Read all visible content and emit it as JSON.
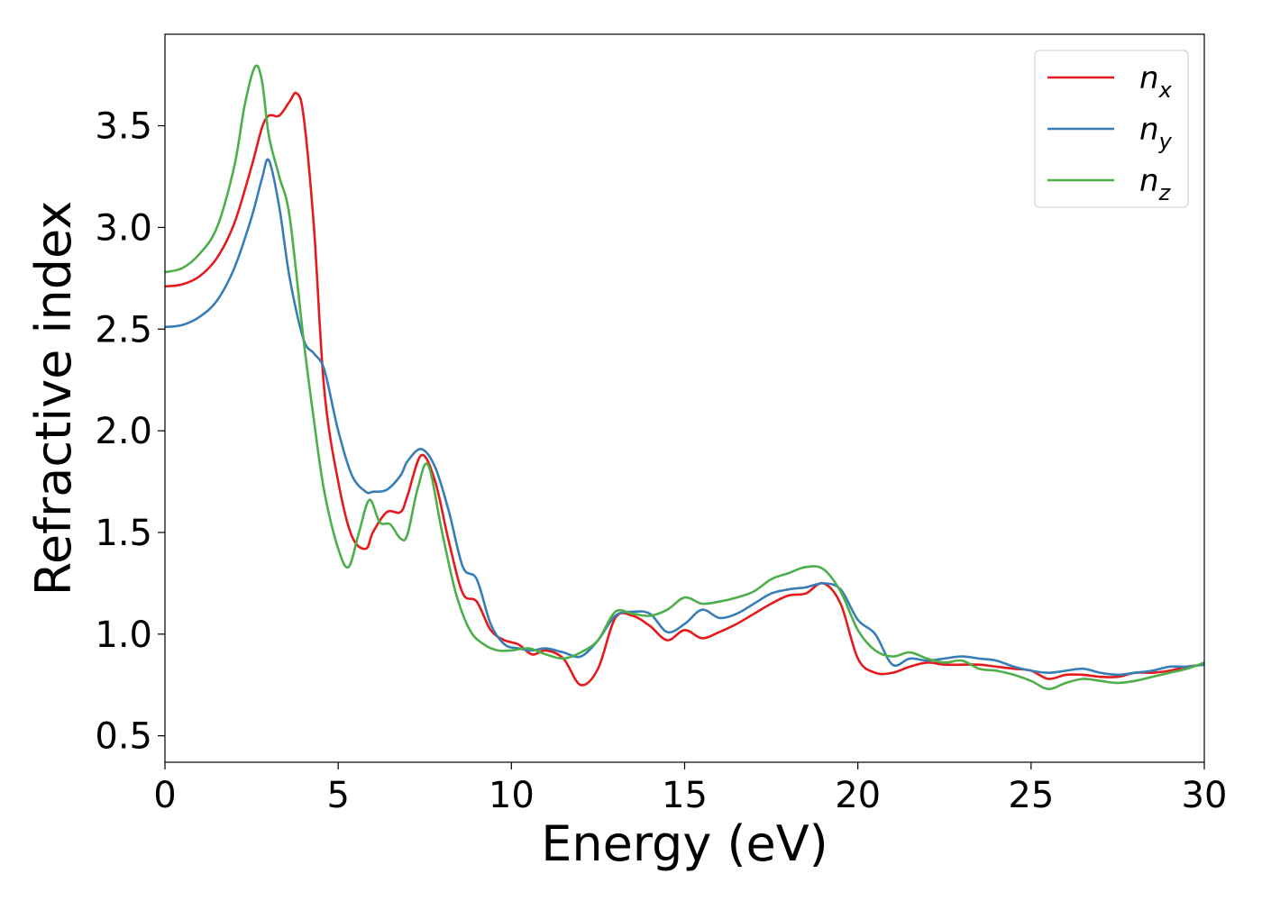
{
  "chart_data": {
    "type": "line",
    "xlabel": "Energy (eV)",
    "ylabel": "Refractive index",
    "xlim": [
      0,
      30
    ],
    "ylim": [
      0.37,
      3.95
    ],
    "xticks": [
      0,
      5,
      10,
      15,
      20,
      25,
      30
    ],
    "yticks": [
      0.5,
      1.0,
      1.5,
      2.0,
      2.5,
      3.0,
      3.5
    ],
    "xtick_labels": [
      "0",
      "5",
      "10",
      "15",
      "20",
      "25",
      "30"
    ],
    "ytick_labels": [
      "0.5",
      "1.0",
      "1.5",
      "2.0",
      "2.5",
      "3.0",
      "3.5"
    ],
    "grid": false,
    "legend_position": "top-right",
    "series": [
      {
        "name": "n_x",
        "label_base": "n",
        "label_sub": "x",
        "color": "#e41a1c",
        "x": [
          0,
          0.5,
          1.0,
          1.5,
          2.0,
          2.5,
          2.8,
          3.0,
          3.3,
          3.6,
          3.8,
          4.0,
          4.3,
          4.6,
          5.0,
          5.4,
          5.8,
          6.0,
          6.4,
          6.8,
          7.0,
          7.4,
          7.8,
          8.2,
          8.6,
          9.0,
          9.4,
          9.8,
          10.2,
          10.6,
          11.0,
          11.5,
          12.0,
          12.5,
          13.0,
          13.5,
          14.0,
          14.5,
          15.0,
          15.5,
          16.0,
          16.5,
          17.0,
          17.5,
          18.0,
          18.5,
          19.0,
          19.5,
          20.0,
          20.5,
          21.0,
          21.5,
          22.0,
          22.5,
          23.0,
          23.5,
          24.0,
          24.5,
          25.0,
          25.5,
          26.0,
          26.5,
          27.0,
          27.5,
          28.0,
          28.5,
          29.0,
          29.5,
          30.0
        ],
        "y": [
          2.71,
          2.72,
          2.76,
          2.85,
          3.02,
          3.3,
          3.49,
          3.55,
          3.55,
          3.62,
          3.66,
          3.55,
          3.0,
          2.2,
          1.75,
          1.48,
          1.42,
          1.5,
          1.6,
          1.6,
          1.68,
          1.88,
          1.75,
          1.45,
          1.2,
          1.16,
          1.02,
          0.97,
          0.95,
          0.9,
          0.92,
          0.88,
          0.75,
          0.83,
          1.08,
          1.09,
          1.04,
          0.97,
          1.02,
          0.98,
          1.01,
          1.05,
          1.1,
          1.15,
          1.19,
          1.2,
          1.25,
          1.15,
          0.88,
          0.81,
          0.81,
          0.84,
          0.86,
          0.85,
          0.85,
          0.85,
          0.84,
          0.83,
          0.82,
          0.78,
          0.8,
          0.8,
          0.79,
          0.79,
          0.81,
          0.81,
          0.82,
          0.84,
          0.85
        ]
      },
      {
        "name": "n_y",
        "label_base": "n",
        "label_sub": "y",
        "color": "#377eb8",
        "x": [
          0,
          0.5,
          1.0,
          1.5,
          2.0,
          2.5,
          2.8,
          3.0,
          3.3,
          3.6,
          4.0,
          4.3,
          4.6,
          5.0,
          5.4,
          5.8,
          6.0,
          6.4,
          6.8,
          7.0,
          7.4,
          7.8,
          8.2,
          8.6,
          9.0,
          9.4,
          9.8,
          10.2,
          10.6,
          11.0,
          11.5,
          12.0,
          12.5,
          13.0,
          13.5,
          14.0,
          14.5,
          15.0,
          15.5,
          16.0,
          16.5,
          17.0,
          17.5,
          18.0,
          18.5,
          19.0,
          19.5,
          20.0,
          20.5,
          21.0,
          21.5,
          22.0,
          22.5,
          23.0,
          23.5,
          24.0,
          24.5,
          25.0,
          25.5,
          26.0,
          26.5,
          27.0,
          27.5,
          28.0,
          28.5,
          29.0,
          29.5,
          30.0
        ],
        "y": [
          2.51,
          2.52,
          2.56,
          2.64,
          2.8,
          3.05,
          3.24,
          3.33,
          3.1,
          2.75,
          2.45,
          2.38,
          2.3,
          2.0,
          1.78,
          1.7,
          1.7,
          1.71,
          1.78,
          1.85,
          1.91,
          1.82,
          1.6,
          1.33,
          1.27,
          1.05,
          0.95,
          0.93,
          0.92,
          0.93,
          0.91,
          0.89,
          0.97,
          1.09,
          1.11,
          1.1,
          1.01,
          1.05,
          1.12,
          1.08,
          1.1,
          1.15,
          1.2,
          1.22,
          1.23,
          1.25,
          1.22,
          1.07,
          1.0,
          0.85,
          0.88,
          0.87,
          0.88,
          0.89,
          0.88,
          0.87,
          0.84,
          0.82,
          0.81,
          0.82,
          0.83,
          0.81,
          0.8,
          0.81,
          0.82,
          0.84,
          0.84,
          0.85
        ]
      },
      {
        "name": "n_z",
        "label_base": "n",
        "label_sub": "z",
        "color": "#4daf4a",
        "x": [
          0,
          0.5,
          1.0,
          1.5,
          2.0,
          2.3,
          2.6,
          2.8,
          3.0,
          3.3,
          3.6,
          4.0,
          4.3,
          4.6,
          5.0,
          5.3,
          5.6,
          5.9,
          6.2,
          6.5,
          6.8,
          7.0,
          7.3,
          7.6,
          8.0,
          8.4,
          8.8,
          9.2,
          9.6,
          10.0,
          10.5,
          11.0,
          11.5,
          12.0,
          12.5,
          13.0,
          13.5,
          14.0,
          14.5,
          15.0,
          15.5,
          16.0,
          16.5,
          17.0,
          17.5,
          18.0,
          18.5,
          19.0,
          19.5,
          20.0,
          20.5,
          21.0,
          21.5,
          22.0,
          22.5,
          23.0,
          23.5,
          24.0,
          24.5,
          25.0,
          25.5,
          26.0,
          26.5,
          27.0,
          27.5,
          28.0,
          28.5,
          29.0,
          29.5,
          30.0
        ],
        "y": [
          2.78,
          2.8,
          2.87,
          3.0,
          3.3,
          3.6,
          3.79,
          3.72,
          3.45,
          3.25,
          3.05,
          2.45,
          2.05,
          1.7,
          1.42,
          1.33,
          1.5,
          1.66,
          1.55,
          1.54,
          1.47,
          1.49,
          1.72,
          1.83,
          1.5,
          1.2,
          1.02,
          0.95,
          0.92,
          0.92,
          0.93,
          0.9,
          0.88,
          0.91,
          0.97,
          1.11,
          1.1,
          1.09,
          1.12,
          1.18,
          1.15,
          1.16,
          1.18,
          1.21,
          1.27,
          1.3,
          1.33,
          1.32,
          1.21,
          1.02,
          0.92,
          0.89,
          0.91,
          0.88,
          0.86,
          0.87,
          0.83,
          0.82,
          0.8,
          0.77,
          0.73,
          0.76,
          0.78,
          0.77,
          0.76,
          0.77,
          0.79,
          0.81,
          0.83,
          0.86
        ]
      }
    ]
  },
  "colors": {
    "n_x": "#e41a1c",
    "n_y": "#377eb8",
    "n_z": "#4daf4a"
  }
}
